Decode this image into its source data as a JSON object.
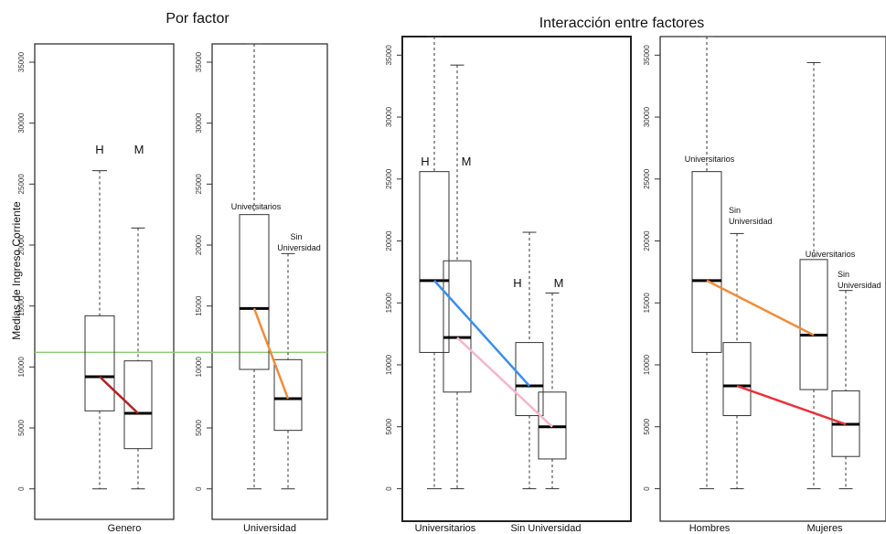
{
  "sections": {
    "left_title": "Por factor",
    "right_title": "Interacción entre factores",
    "y_axis_label": "Medias de Ingreso Corriente"
  },
  "reference_line": {
    "value": 11200,
    "color": "#8fc97a"
  },
  "chart_data": [
    {
      "type": "box",
      "xlabel": "Genero",
      "ylim": [
        -1000,
        36500
      ],
      "yticks": [
        0,
        5000,
        10000,
        15000,
        20000,
        25000,
        30000,
        35000
      ],
      "boxes": [
        {
          "label": "H",
          "whisker_low": 0,
          "q1": 6400,
          "median": 9200,
          "q3": 14200,
          "whisker_high": 26100
        },
        {
          "label": "M",
          "whisker_low": 0,
          "q1": 3300,
          "median": 6200,
          "q3": 10500,
          "whisker_high": 21400
        }
      ],
      "annotations": [
        "H",
        "M"
      ],
      "connectors": [
        {
          "from": 0,
          "to": 1,
          "color": "#b22222"
        }
      ]
    },
    {
      "type": "box",
      "xlabel": "Universidad",
      "ylim": [
        -1000,
        36500
      ],
      "yticks": [
        0,
        5000,
        10000,
        15000,
        20000,
        25000,
        30000,
        35000
      ],
      "boxes": [
        {
          "label": "Universitarios",
          "whisker_low": 0,
          "q1": 9800,
          "median": 14800,
          "q3": 22500,
          "whisker_high": 36500
        },
        {
          "label": "Sin Universidad",
          "whisker_low": 0,
          "q1": 4800,
          "median": 7400,
          "q3": 10600,
          "whisker_high": 19300
        }
      ],
      "annotations": [
        "Universitarios",
        "Sin",
        "Universidad"
      ],
      "connectors": [
        {
          "from": 0,
          "to": 1,
          "color": "#f08c3a"
        }
      ]
    },
    {
      "type": "box",
      "xlabels": [
        "Universitarios",
        "Sin Universidad"
      ],
      "ylim": [
        -1000,
        36500
      ],
      "yticks": [
        0,
        5000,
        10000,
        15000,
        20000,
        25000,
        30000,
        35000
      ],
      "boxes": [
        {
          "label": "Universitarios H",
          "whisker_low": 0,
          "q1": 11000,
          "median": 16800,
          "q3": 25600,
          "whisker_high": 36500
        },
        {
          "label": "Universitarios M",
          "whisker_low": 0,
          "q1": 7800,
          "median": 12200,
          "q3": 18400,
          "whisker_high": 34200
        },
        {
          "label": "Sin Universidad H",
          "whisker_low": 0,
          "q1": 5900,
          "median": 8300,
          "q3": 11800,
          "whisker_high": 20700
        },
        {
          "label": "Sin Universidad M",
          "whisker_low": 0,
          "q1": 2400,
          "median": 5000,
          "q3": 7800,
          "whisker_high": 15800
        }
      ],
      "annotations": [
        "H",
        "M",
        "H",
        "M"
      ],
      "connectors": [
        {
          "from": 0,
          "to": 2,
          "color": "#3b8fe8"
        },
        {
          "from": 1,
          "to": 3,
          "color": "#f4b6c8"
        }
      ]
    },
    {
      "type": "box",
      "xlabels": [
        "Hombres",
        "Mujeres"
      ],
      "ylim": [
        -1000,
        36500
      ],
      "yticks": [
        0,
        5000,
        10000,
        15000,
        20000,
        25000,
        30000,
        35000
      ],
      "boxes": [
        {
          "label": "Hombres Universitarios",
          "whisker_low": 0,
          "q1": 11000,
          "median": 16800,
          "q3": 25600,
          "whisker_high": 36500
        },
        {
          "label": "Hombres Sin Universidad",
          "whisker_low": 0,
          "q1": 5900,
          "median": 8300,
          "q3": 11800,
          "whisker_high": 20600
        },
        {
          "label": "Mujeres Universitarios",
          "whisker_low": 0,
          "q1": 8000,
          "median": 12400,
          "q3": 18500,
          "whisker_high": 34400
        },
        {
          "label": "Mujeres Sin Universidad",
          "whisker_low": 0,
          "q1": 2600,
          "median": 5200,
          "q3": 7900,
          "whisker_high": 16000
        }
      ],
      "annotations": [
        "Universitarios",
        "Sin",
        "Universidad",
        "Universitarios",
        "Sin",
        "Universidad"
      ],
      "connectors": [
        {
          "from": 0,
          "to": 2,
          "color": "#f08c3a"
        },
        {
          "from": 1,
          "to": 3,
          "color": "#e8323a"
        }
      ]
    }
  ]
}
